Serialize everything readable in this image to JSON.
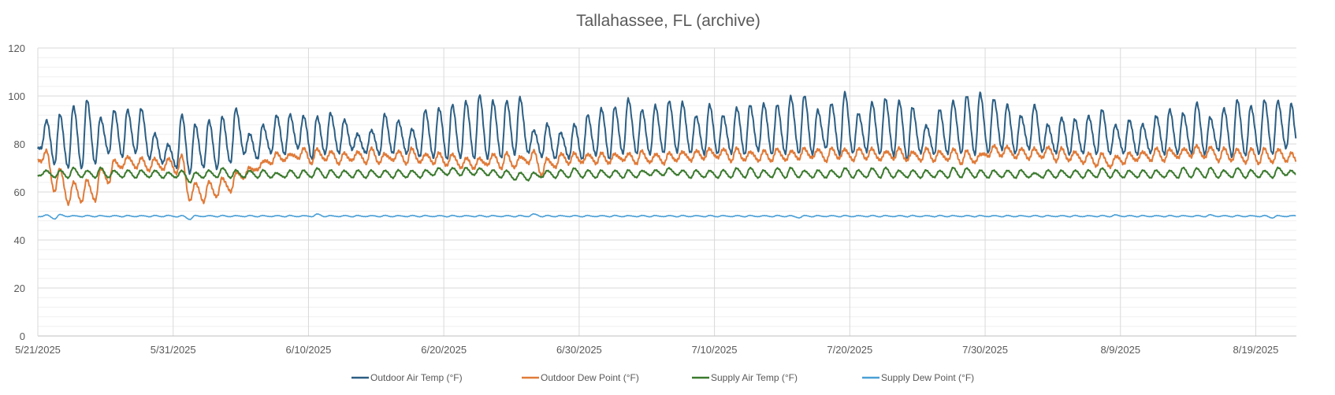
{
  "chart_data": {
    "type": "line",
    "title": "Tallahassee, FL (archive)",
    "xlabel": "",
    "ylabel": "",
    "ylim": [
      0,
      120
    ],
    "y_ticks": [
      "0",
      "20",
      "40",
      "60",
      "80",
      "100",
      "120"
    ],
    "y_minor_step": 4,
    "xlim": [
      "5/21/2025",
      "8/22/2025"
    ],
    "x_ticks": [
      "5/21/2025",
      "5/31/2025",
      "6/10/2025",
      "6/20/2025",
      "6/30/2025",
      "7/10/2025",
      "7/20/2025",
      "7/30/2025",
      "8/9/2025",
      "8/19/2025"
    ],
    "grid": true,
    "legend_position": "bottom",
    "dates": [
      "5/21",
      "5/22",
      "5/23",
      "5/24",
      "5/25",
      "5/26",
      "5/27",
      "5/28",
      "5/29",
      "5/30",
      "5/31",
      "6/1",
      "6/2",
      "6/3",
      "6/4",
      "6/5",
      "6/6",
      "6/7",
      "6/8",
      "6/9",
      "6/10",
      "6/11",
      "6/12",
      "6/13",
      "6/14",
      "6/15",
      "6/16",
      "6/17",
      "6/18",
      "6/19",
      "6/20",
      "6/21",
      "6/22",
      "6/23",
      "6/24",
      "6/25",
      "6/26",
      "6/27",
      "6/28",
      "6/29",
      "6/30",
      "7/1",
      "7/2",
      "7/3",
      "7/4",
      "7/5",
      "7/6",
      "7/7",
      "7/8",
      "7/9",
      "7/10",
      "7/11",
      "7/12",
      "7/13",
      "7/14",
      "7/15",
      "7/16",
      "7/17",
      "7/18",
      "7/19",
      "7/20",
      "7/21",
      "7/22",
      "7/23",
      "7/24",
      "7/25",
      "7/26",
      "7/27",
      "7/28",
      "7/29",
      "7/30",
      "7/31",
      "8/1",
      "8/2",
      "8/3",
      "8/4",
      "8/5",
      "8/6",
      "8/7",
      "8/8",
      "8/9",
      "8/10",
      "8/11",
      "8/12",
      "8/13",
      "8/14",
      "8/15",
      "8/16",
      "8/17",
      "8/18",
      "8/19",
      "8/20",
      "8/21"
    ],
    "series": [
      {
        "name": "Outdoor Air Temp (°F)",
        "color": "#2c5f84",
        "daily_max": [
          90,
          92,
          96,
          98,
          91,
          94,
          94,
          95,
          84,
          80,
          92,
          88,
          90,
          91,
          95,
          84,
          88,
          92,
          92,
          92,
          91,
          93,
          90,
          84,
          86,
          92,
          90,
          86,
          94,
          95,
          96,
          98,
          100,
          98,
          98,
          99,
          86,
          88,
          85,
          88,
          92,
          95,
          95,
          99,
          94,
          96,
          98,
          97,
          92,
          96,
          92,
          95,
          96,
          97,
          96,
          100,
          100,
          94,
          97,
          101,
          93,
          97,
          99,
          98,
          95,
          88,
          94,
          98,
          100,
          101,
          99,
          96,
          92,
          96,
          88,
          91,
          90,
          92,
          94,
          88,
          90,
          88,
          92,
          94,
          93,
          97,
          91,
          95,
          98,
          96,
          98,
          98,
          97
        ],
        "daily_min": [
          78,
          72,
          70,
          70,
          72,
          76,
          75,
          76,
          74,
          72,
          70,
          68,
          70,
          70,
          72,
          76,
          74,
          76,
          76,
          78,
          74,
          76,
          76,
          78,
          76,
          76,
          76,
          76,
          75,
          74,
          74,
          74,
          74,
          74,
          74,
          76,
          76,
          75,
          74,
          74,
          74,
          75,
          74,
          76,
          76,
          76,
          76,
          77,
          76,
          76,
          76,
          76,
          76,
          77,
          76,
          76,
          76,
          76,
          78,
          76,
          76,
          77,
          76,
          75,
          74,
          76,
          76,
          76,
          76,
          76,
          76,
          78,
          76,
          78,
          77,
          76,
          76,
          76,
          76,
          76,
          76,
          76,
          76,
          76,
          76,
          76,
          76,
          77,
          75,
          75,
          76,
          76,
          78
        ]
      },
      {
        "name": "Outdoor Dew Point (°F)",
        "color": "#e07b39",
        "daily_max": [
          77,
          70,
          64,
          65,
          70,
          73,
          75,
          74,
          74,
          74,
          75,
          64,
          64,
          66,
          68,
          70,
          73,
          76,
          76,
          78,
          78,
          77,
          76,
          77,
          78,
          76,
          77,
          78,
          76,
          76,
          76,
          74,
          74,
          76,
          76,
          75,
          77,
          74,
          76,
          76,
          76,
          76,
          76,
          76,
          77,
          76,
          76,
          77,
          77,
          78,
          78,
          78,
          77,
          77,
          78,
          77,
          78,
          78,
          78,
          78,
          78,
          78,
          77,
          78,
          77,
          78,
          77,
          78,
          77,
          76,
          79,
          79,
          78,
          78,
          79,
          78,
          77,
          76,
          76,
          75,
          76,
          77,
          78,
          78,
          78,
          79,
          79,
          78,
          78,
          78,
          78,
          78,
          76
        ],
        "daily_min": [
          73,
          60,
          55,
          56,
          56,
          64,
          70,
          70,
          69,
          69,
          68,
          56,
          56,
          58,
          60,
          66,
          69,
          72,
          73,
          74,
          72,
          73,
          72,
          73,
          72,
          72,
          73,
          72,
          72,
          72,
          71,
          70,
          70,
          71,
          70,
          70,
          72,
          67,
          70,
          72,
          72,
          72,
          72,
          73,
          72,
          72,
          72,
          73,
          73,
          74,
          74,
          73,
          73,
          73,
          73,
          73,
          74,
          74,
          73,
          74,
          73,
          74,
          73,
          74,
          73,
          73,
          73,
          73,
          72,
          72,
          75,
          75,
          74,
          74,
          74,
          73,
          73,
          72,
          71,
          70,
          72,
          73,
          73,
          73,
          74,
          75,
          74,
          73,
          73,
          72,
          72,
          72,
          73
        ]
      },
      {
        "name": "Supply Air Temp (°F)",
        "color": "#3b7a2e",
        "daily_max": [
          69,
          69,
          70,
          69,
          70,
          69,
          69,
          69,
          69,
          68,
          69,
          68,
          69,
          70,
          69,
          69,
          69,
          68,
          69,
          69,
          70,
          69,
          69,
          69,
          69,
          69,
          69,
          69,
          69,
          70,
          70,
          70,
          70,
          69,
          69,
          68,
          68,
          69,
          69,
          70,
          69,
          69,
          69,
          69,
          69,
          69,
          70,
          69,
          69,
          69,
          69,
          70,
          70,
          69,
          70,
          70,
          69,
          69,
          69,
          70,
          69,
          70,
          70,
          69,
          69,
          69,
          69,
          70,
          70,
          69,
          69,
          69,
          69,
          68,
          69,
          69,
          69,
          69,
          70,
          69,
          69,
          69,
          69,
          69,
          70,
          70,
          70,
          69,
          70,
          69,
          69,
          70,
          69
        ],
        "daily_min": [
          67,
          66,
          66,
          66,
          66,
          66,
          66,
          66,
          66,
          66,
          66,
          64,
          66,
          66,
          66,
          66,
          66,
          66,
          66,
          66,
          66,
          66,
          66,
          66,
          66,
          66,
          66,
          66,
          66,
          67,
          67,
          67,
          67,
          67,
          66,
          65,
          65,
          66,
          66,
          66,
          66,
          66,
          66,
          66,
          66,
          67,
          67,
          67,
          66,
          66,
          66,
          66,
          66,
          66,
          66,
          66,
          66,
          66,
          66,
          66,
          66,
          66,
          66,
          66,
          66,
          66,
          66,
          66,
          66,
          66,
          66,
          66,
          66,
          66,
          66,
          66,
          66,
          66,
          66,
          66,
          66,
          66,
          66,
          66,
          66,
          66,
          66,
          66,
          66,
          66,
          66,
          66,
          67
        ]
      },
      {
        "name": "Supply Dew Point (°F)",
        "color": "#4a9fd6",
        "daily_max": [
          50.5,
          50.6,
          50.2,
          50.2,
          50.2,
          50.2,
          50.2,
          50.2,
          50.2,
          50.3,
          50.2,
          50.2,
          50.2,
          50.2,
          50.2,
          50.2,
          50.2,
          50.2,
          50.2,
          50.2,
          50.8,
          50.2,
          50.2,
          50.2,
          50.2,
          50.2,
          50.2,
          50.2,
          50.2,
          50.2,
          50.2,
          50.2,
          50.2,
          50.2,
          50.2,
          50.2,
          50.9,
          50.2,
          50.2,
          50.2,
          50.2,
          50.2,
          50.2,
          50.2,
          50.2,
          50.2,
          50.2,
          50.2,
          50.2,
          50.2,
          50.2,
          50.2,
          50.2,
          50.2,
          50.2,
          50.2,
          50.2,
          50.2,
          50.2,
          50.2,
          50.2,
          50.2,
          50.2,
          50.2,
          50.2,
          50.2,
          50.2,
          50.2,
          50.2,
          50.2,
          50.2,
          50.2,
          50.2,
          50.2,
          50.2,
          50.2,
          50.2,
          50.2,
          50.2,
          50.5,
          50.2,
          50.2,
          50.2,
          50.2,
          50.2,
          50.2,
          50.5,
          50.2,
          50.2,
          50.2,
          50.2,
          50.2,
          50.2
        ],
        "daily_min": [
          49.7,
          48.8,
          49.7,
          49.7,
          49.7,
          49.7,
          49.7,
          49.7,
          49.7,
          49.7,
          49.6,
          48.6,
          49.7,
          49.7,
          49.7,
          49.7,
          49.7,
          49.7,
          49.7,
          49.7,
          49.7,
          49.7,
          49.7,
          49.7,
          49.7,
          49.7,
          49.7,
          49.7,
          49.7,
          49.7,
          49.7,
          49.7,
          49.7,
          49.7,
          49.7,
          49.7,
          49.7,
          49.7,
          49.7,
          49.7,
          49.7,
          49.7,
          49.7,
          49.7,
          49.7,
          49.7,
          49.7,
          49.7,
          49.7,
          49.7,
          49.7,
          49.7,
          49.7,
          49.7,
          49.7,
          49.7,
          49.2,
          49.7,
          49.7,
          49.7,
          49.7,
          49.7,
          49.7,
          49.7,
          49.7,
          49.7,
          49.7,
          49.7,
          49.7,
          49.7,
          49.7,
          49.7,
          49.7,
          49.7,
          49.7,
          49.7,
          49.7,
          49.7,
          49.7,
          49.7,
          49.7,
          49.7,
          49.7,
          49.7,
          49.7,
          49.7,
          49.7,
          49.7,
          49.7,
          49.7,
          49.7,
          49.2,
          49.7
        ]
      }
    ]
  }
}
